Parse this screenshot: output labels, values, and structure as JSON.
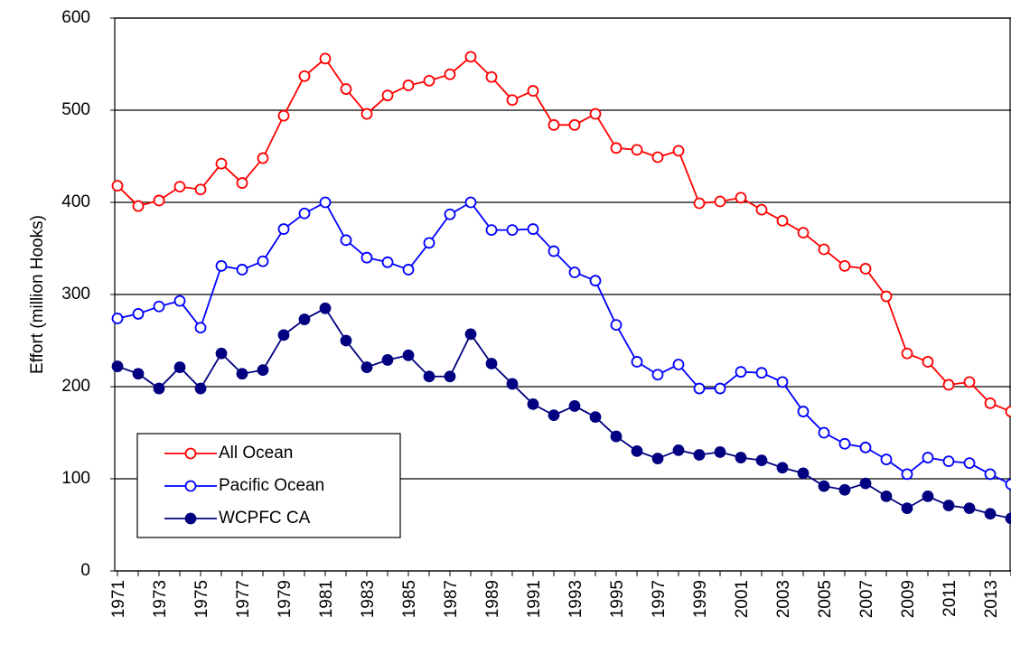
{
  "chart_data": {
    "type": "line",
    "ylabel": "Effort (million Hooks)",
    "categories": [
      "1971",
      null,
      "1973",
      null,
      "1975",
      null,
      "1977",
      null,
      "1979",
      null,
      "1981",
      null,
      "1983",
      null,
      "1985",
      null,
      "1987",
      null,
      "1989",
      null,
      "1991",
      null,
      "1993",
      null,
      "1995",
      null,
      "1997",
      null,
      "1999",
      null,
      "2001",
      null,
      "2003",
      null,
      "2005",
      null,
      "2007",
      null,
      "2009",
      null,
      "2011",
      null,
      "2013",
      null
    ],
    "series": [
      {
        "name": "All Ocean",
        "color": "#ff0000",
        "filled": false,
        "values": [
          418,
          396,
          402,
          417,
          414,
          442,
          421,
          448,
          494,
          537,
          556,
          523,
          496,
          516,
          527,
          532,
          539,
          558,
          536,
          511,
          521,
          484,
          484,
          496,
          459,
          457,
          449,
          456,
          399,
          401,
          405,
          392,
          380,
          367,
          349,
          331,
          328,
          298,
          236,
          227,
          202,
          205,
          182,
          173
        ]
      },
      {
        "name": "Pacific Ocean",
        "color": "#0000ff",
        "filled": false,
        "values": [
          274,
          279,
          287,
          293,
          264,
          331,
          327,
          336,
          371,
          388,
          400,
          359,
          340,
          335,
          327,
          356,
          387,
          400,
          370,
          370,
          371,
          347,
          324,
          315,
          267,
          227,
          213,
          224,
          198,
          198,
          216,
          215,
          205,
          173,
          150,
          138,
          134,
          121,
          105,
          123,
          119,
          117,
          105,
          94
        ]
      },
      {
        "name": "WCPFC CA",
        "color": "#000080",
        "filled": true,
        "values": [
          222,
          214,
          198,
          221,
          198,
          236,
          214,
          218,
          256,
          273,
          285,
          250,
          221,
          229,
          234,
          211,
          211,
          257,
          225,
          203,
          181,
          169,
          179,
          167,
          146,
          130,
          122,
          131,
          126,
          129,
          123,
          120,
          112,
          106,
          92,
          88,
          95,
          81,
          68,
          81,
          71,
          68,
          62,
          57
        ]
      }
    ],
    "ylim": [
      0,
      600
    ],
    "yticks": [
      0,
      100,
      200,
      300,
      400,
      500,
      600
    ],
    "grid": true,
    "legend": "lower left"
  }
}
